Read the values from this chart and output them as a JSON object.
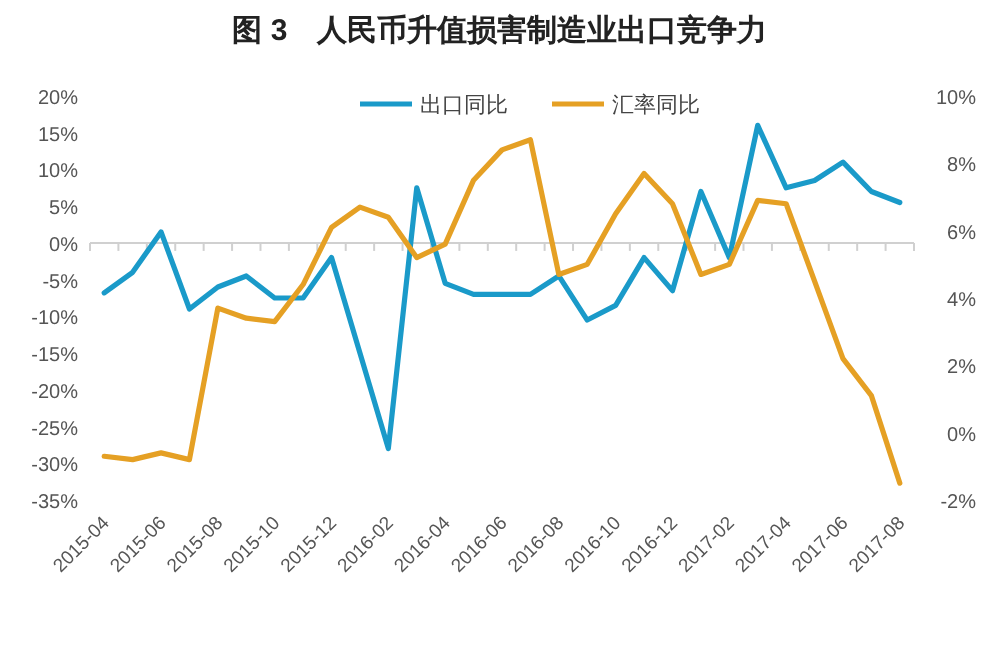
{
  "chart_data": {
    "type": "line",
    "title": "图 3　人民币升值损害制造业出口竞争力",
    "categories": [
      "2015-04",
      null,
      "2015-06",
      null,
      "2015-08",
      null,
      "2015-10",
      null,
      "2015-12",
      null,
      "2016-02",
      null,
      "2016-04",
      null,
      "2016-06",
      null,
      "2016-08",
      null,
      "2016-10",
      null,
      "2016-12",
      null,
      "2017-02",
      null,
      "2017-04",
      null,
      "2017-06",
      null,
      "2017-08"
    ],
    "series": [
      {
        "name": "出口同比",
        "color": "#1a9ac9",
        "values": [
          -6.8,
          -4,
          1.5,
          -9,
          -6,
          -4.5,
          -7.5,
          -7.5,
          -2,
          -15,
          -28,
          7.5,
          -5.5,
          -7,
          -7,
          -7,
          -4.5,
          -10.5,
          -8.5,
          -2,
          -6.5,
          7,
          -2,
          16,
          7.5,
          8.5,
          11,
          7,
          5.5
        ]
      },
      {
        "name": "汇率同比",
        "color": "#e5a024",
        "axis": "y2",
        "values": [
          -0.7,
          -0.8,
          -0.6,
          -0.8,
          3.7,
          3.4,
          3.3,
          4.4,
          6.1,
          6.7,
          6.4,
          5.2,
          5.6,
          7.5,
          8.4,
          8.7,
          4.7,
          5,
          6.5,
          7.7,
          6.8,
          4.7,
          5,
          6.9,
          6.8,
          4.5,
          2.2,
          1.1,
          -1.5
        ]
      }
    ],
    "ylim": [
      -35,
      20
    ],
    "yticks": [
      {
        "value": 20,
        "label": "20%"
      },
      {
        "value": 15,
        "label": "15%"
      },
      {
        "value": 10,
        "label": "10%"
      },
      {
        "value": 5,
        "label": "5%"
      },
      {
        "value": 0,
        "label": "0%"
      },
      {
        "value": -5,
        "label": "-5%"
      },
      {
        "value": -10,
        "label": "-10%"
      },
      {
        "value": -15,
        "label": "-15%"
      },
      {
        "value": -20,
        "label": "-20%"
      },
      {
        "value": -25,
        "label": "-25%"
      },
      {
        "value": -30,
        "label": "-30%"
      },
      {
        "value": -35,
        "label": "-35%"
      }
    ],
    "y2lim": [
      -2,
      10
    ],
    "y2ticks": [
      {
        "value": 10,
        "label": "10%"
      },
      {
        "value": 8,
        "label": "8%"
      },
      {
        "value": 6,
        "label": "6%"
      },
      {
        "value": 4,
        "label": "4%"
      },
      {
        "value": 2,
        "label": "2%"
      },
      {
        "value": 0,
        "label": "0%"
      },
      {
        "value": -2,
        "label": "-2%"
      }
    ],
    "legend": "top",
    "marker": "none"
  }
}
